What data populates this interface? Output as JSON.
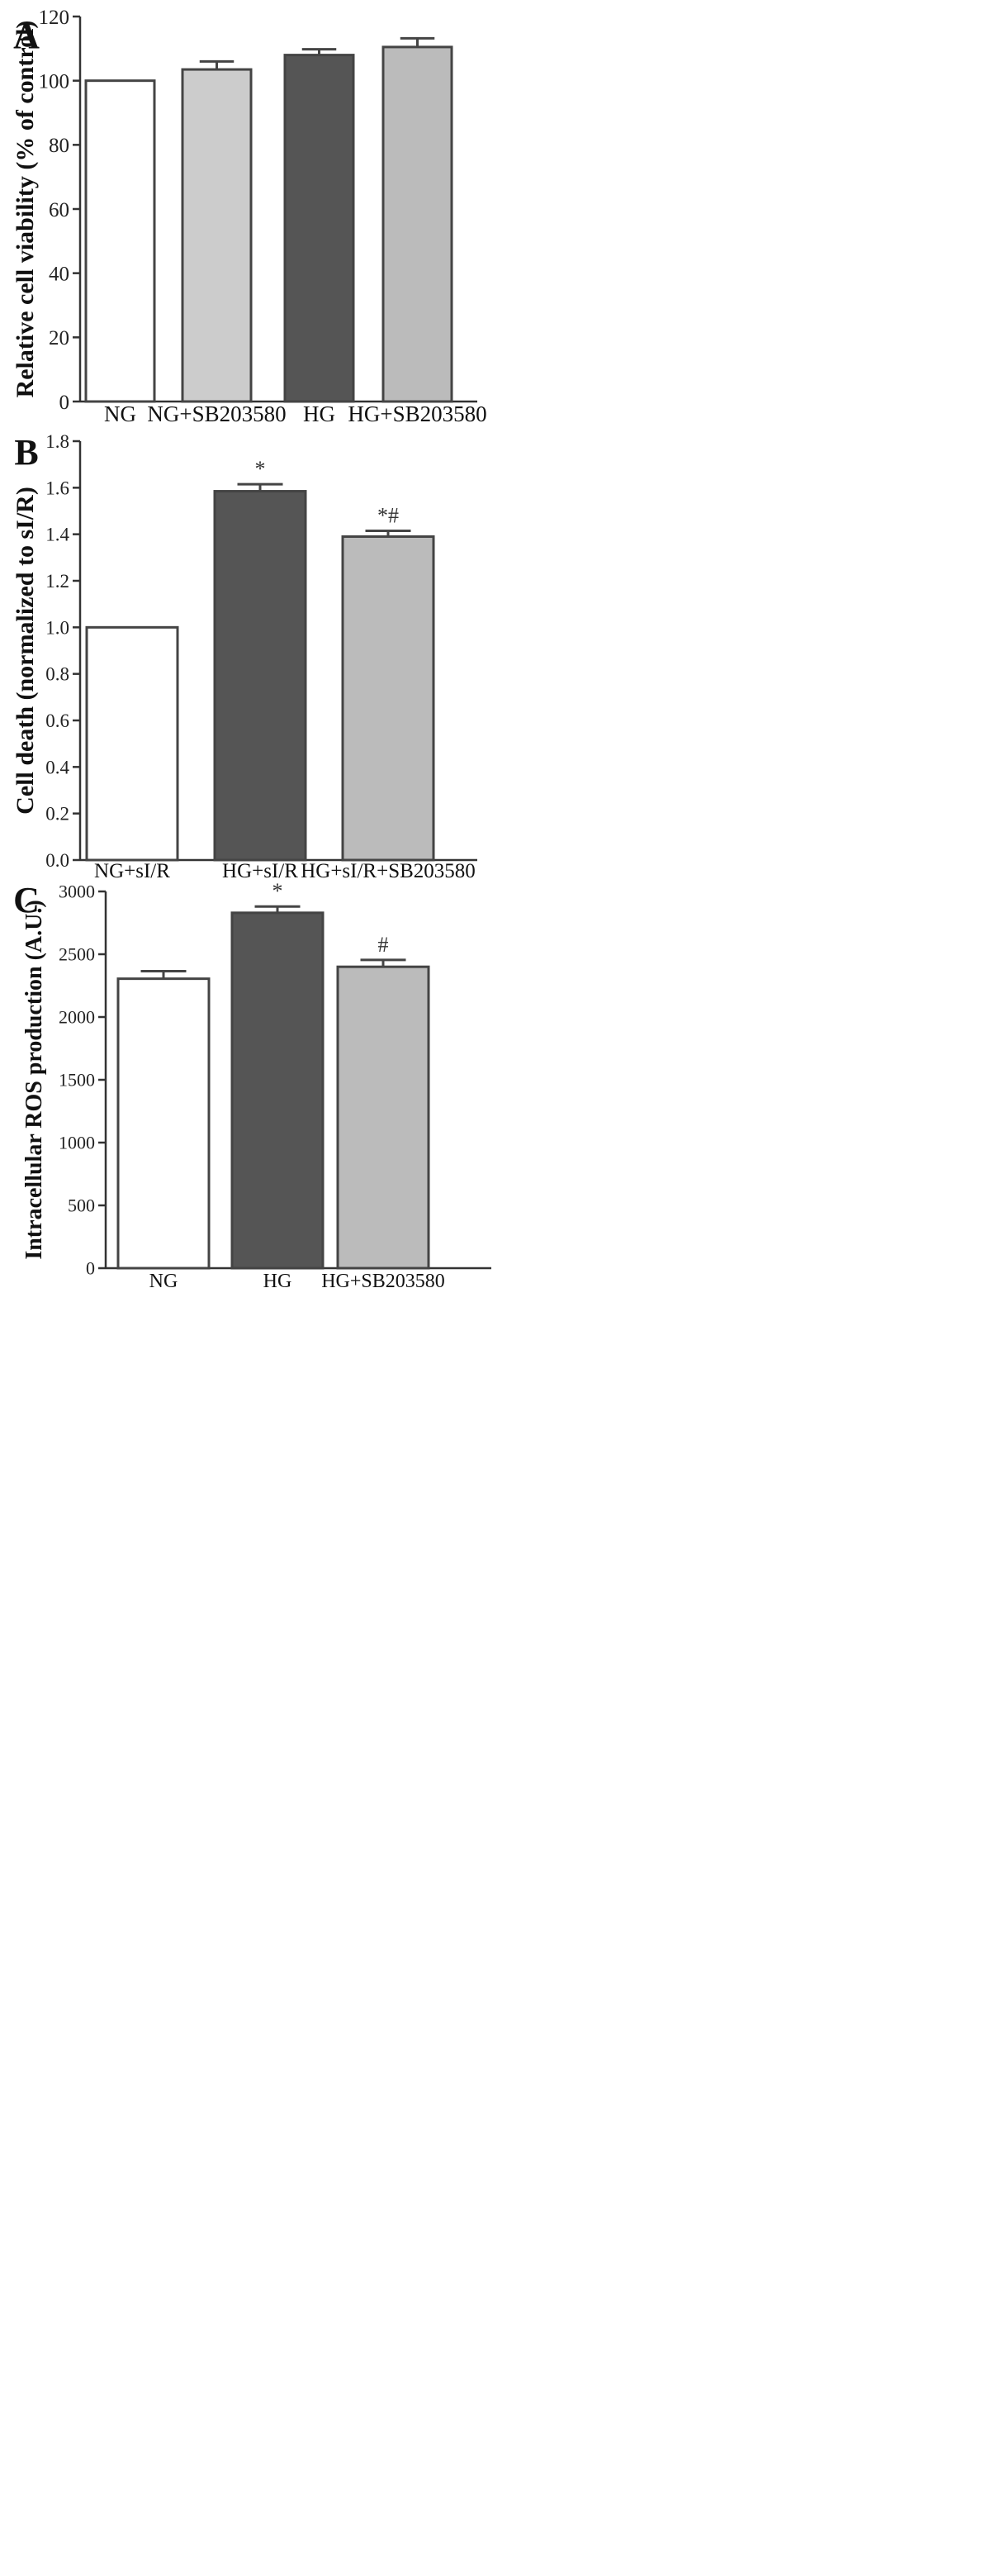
{
  "figure": {
    "panels": [
      "A",
      "B",
      "C"
    ]
  },
  "chart_data": [
    {
      "type": "bar",
      "panel_label": "A",
      "title": "",
      "xlabel": "",
      "ylabel": "Relative cell viability (% of control)",
      "categories": [
        "NG",
        "NG+SB203580",
        "HG",
        "HG+SB203580"
      ],
      "values": [
        100,
        103.5,
        108,
        110.5
      ],
      "errors": [
        0,
        2.5,
        1.8,
        2.7
      ],
      "annotations": [
        "",
        "",
        "",
        ""
      ],
      "bar_colors": [
        "#ffffff",
        "#cccccc",
        "#555555",
        "#bbbbbb"
      ],
      "ylim": [
        0,
        120
      ],
      "yticks": [
        0,
        20,
        40,
        60,
        80,
        100,
        120
      ],
      "ytick_labels": [
        "0",
        "20",
        "40",
        "60",
        "80",
        "100",
        "120"
      ],
      "grid": false,
      "legend": "none"
    },
    {
      "type": "bar",
      "panel_label": "B",
      "title": "",
      "xlabel": "",
      "ylabel": "Cell death (normalized to sI/R)",
      "categories": [
        "NG+sI/R",
        "HG+sI/R",
        "HG+sI/R+SB203580"
      ],
      "values": [
        1.0,
        1.585,
        1.39
      ],
      "errors": [
        0,
        0.03,
        0.025
      ],
      "annotations": [
        "",
        "*",
        "*#"
      ],
      "bar_colors": [
        "#ffffff",
        "#555555",
        "#bbbbbb"
      ],
      "ylim": [
        0,
        1.8
      ],
      "yticks": [
        0,
        0.2,
        0.4,
        0.6,
        0.8,
        1.0,
        1.2,
        1.4,
        1.6,
        1.8
      ],
      "ytick_labels": [
        "0.0",
        "0.2",
        "0.4",
        "0.6",
        "0.8",
        "1.0",
        "1.2",
        "1.4",
        "1.6",
        "1.8"
      ],
      "grid": false,
      "legend": "none"
    },
    {
      "type": "bar",
      "panel_label": "C",
      "title": "",
      "xlabel": "",
      "ylabel": "Intracellular ROS production (A.U.)",
      "categories": [
        "NG",
        "HG",
        "HG+SB203580"
      ],
      "values": [
        2305,
        2830,
        2400
      ],
      "errors": [
        60,
        50,
        55
      ],
      "annotations": [
        "",
        "*",
        "#"
      ],
      "bar_colors": [
        "#ffffff",
        "#555555",
        "#bbbbbb"
      ],
      "ylim": [
        0,
        3000
      ],
      "yticks": [
        0,
        500,
        1000,
        1500,
        2000,
        2500,
        3000
      ],
      "ytick_labels": [
        "0",
        "500",
        "1000",
        "1500",
        "2000",
        "2500",
        "3000"
      ],
      "grid": false,
      "legend": "none"
    }
  ]
}
